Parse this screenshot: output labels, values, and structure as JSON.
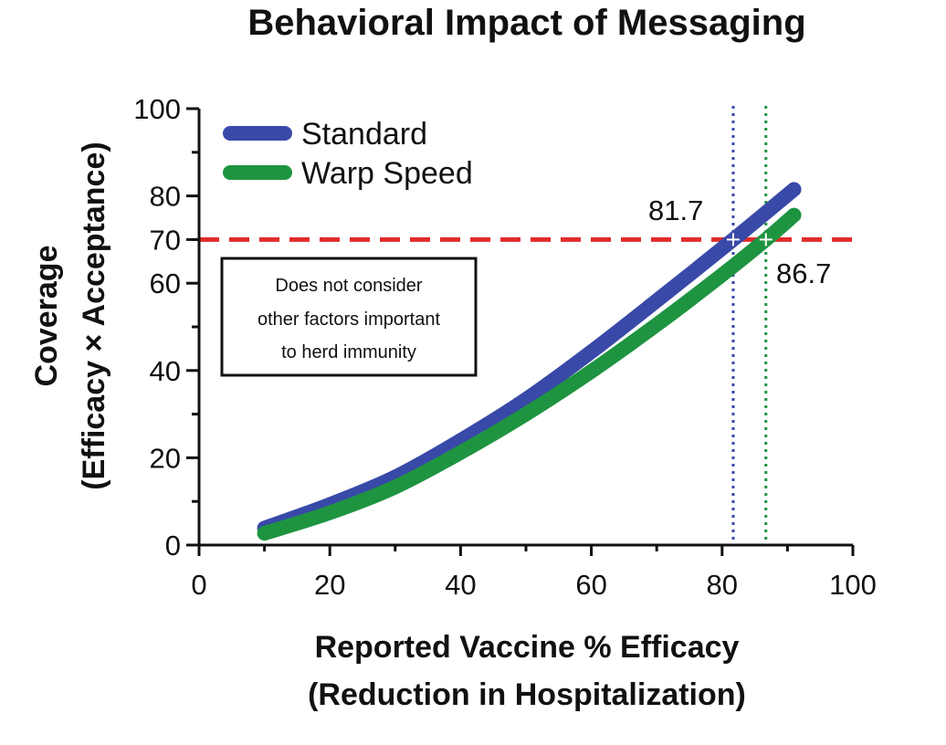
{
  "chart_data": {
    "type": "line",
    "title": "Behavioral Impact of Messaging",
    "xlabel_line1": "Reported Vaccine % Efficacy",
    "xlabel_line2": "(Reduction in Hospitalization)",
    "ylabel_line1": "Coverage",
    "ylabel_line2": "(Efficacy × Acceptance)",
    "xlim": [
      0,
      100
    ],
    "ylim": [
      0,
      100
    ],
    "x_ticks": [
      "0",
      "20",
      "40",
      "60",
      "80",
      "100"
    ],
    "y_ticks": [
      "0",
      "20",
      "40",
      "60",
      "80",
      "100"
    ],
    "legend_position": "top-left",
    "series": [
      {
        "name": "Standard",
        "color": "#3949a8",
        "x": [
          10,
          20,
          30,
          40,
          50,
          60,
          70,
          81.7,
          91
        ],
        "y": [
          3.9,
          9.3,
          15.6,
          24.0,
          33.4,
          44.3,
          56.0,
          70,
          81.5
        ]
      },
      {
        "name": "Warp Speed",
        "color": "#1e9440",
        "x": [
          10,
          20,
          30,
          40,
          50,
          60,
          70,
          80,
          86.7,
          91
        ],
        "y": [
          2.7,
          7.4,
          13.3,
          21.2,
          30.0,
          39.8,
          50.5,
          61.9,
          70,
          75.6
        ]
      }
    ],
    "threshold": {
      "value": 70,
      "label": "70",
      "color": "#e32b2b"
    },
    "markers": [
      {
        "x": 81.7,
        "label": "81.7",
        "color": "#3949a8"
      },
      {
        "x": 86.7,
        "label": "86.7",
        "color": "#1e9440"
      }
    ],
    "note_box": {
      "lines": [
        "Does not consider",
        "other factors important",
        "to herd immunity"
      ]
    }
  }
}
